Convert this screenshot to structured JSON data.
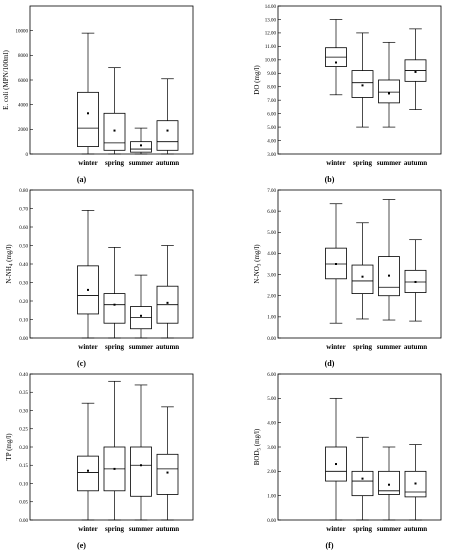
{
  "chart_data": [
    {
      "type": "box",
      "panel_label": "(a)",
      "ylabel": "E. coli (MPN/100ml)",
      "ylim": [
        0,
        12000
      ],
      "yticks": [
        0,
        2000,
        4000,
        6000,
        8000,
        10000
      ],
      "tick_decimals": 0,
      "categories": [
        "winter",
        "spring",
        "summer",
        "autumn"
      ],
      "boxes": [
        {
          "min": 0,
          "q1": 600,
          "median": 2100,
          "q3": 5000,
          "max": 9800,
          "mean": 3300
        },
        {
          "min": 0,
          "q1": 300,
          "median": 900,
          "q3": 3300,
          "max": 7000,
          "mean": 1900
        },
        {
          "min": 0,
          "q1": 150,
          "median": 400,
          "q3": 1000,
          "max": 2100,
          "mean": 700
        },
        {
          "min": 0,
          "q1": 300,
          "median": 1000,
          "q3": 2700,
          "max": 6100,
          "mean": 1900
        }
      ]
    },
    {
      "type": "box",
      "panel_label": "(b)",
      "ylabel": "DO (mg/l)",
      "ylim": [
        3.0,
        14.0
      ],
      "yticks": [
        3.0,
        4.0,
        5.0,
        6.0,
        7.0,
        8.0,
        9.0,
        10.0,
        11.0,
        12.0,
        13.0,
        14.0
      ],
      "tick_decimals": 2,
      "categories": [
        "winter",
        "spring",
        "summer",
        "autumn"
      ],
      "boxes": [
        {
          "min": 7.4,
          "q1": 9.5,
          "median": 10.2,
          "q3": 10.9,
          "max": 13.0,
          "mean": 9.8
        },
        {
          "min": 5.0,
          "q1": 7.2,
          "median": 8.3,
          "q3": 9.2,
          "max": 12.0,
          "mean": 8.1
        },
        {
          "min": 5.0,
          "q1": 6.8,
          "median": 7.6,
          "q3": 8.5,
          "max": 11.3,
          "mean": 7.5
        },
        {
          "min": 6.3,
          "q1": 8.4,
          "median": 9.2,
          "q3": 10.0,
          "max": 12.3,
          "mean": 9.1
        }
      ]
    },
    {
      "type": "box",
      "panel_label": "(c)",
      "ylabel": "N-NH4 (mg/l)",
      "ylim": [
        0,
        0.8
      ],
      "yticks": [
        0,
        0.1,
        0.2,
        0.3,
        0.4,
        0.5,
        0.6,
        0.7,
        0.8
      ],
      "tick_decimals": 2,
      "categories": [
        "winter",
        "spring",
        "summer",
        "autumn"
      ],
      "boxes": [
        {
          "min": 0,
          "q1": 0.13,
          "median": 0.23,
          "q3": 0.39,
          "max": 0.69,
          "mean": 0.26
        },
        {
          "min": 0,
          "q1": 0.08,
          "median": 0.18,
          "q3": 0.24,
          "max": 0.49,
          "mean": 0.18
        },
        {
          "min": 0,
          "q1": 0.05,
          "median": 0.11,
          "q3": 0.17,
          "max": 0.34,
          "mean": 0.12
        },
        {
          "min": 0,
          "q1": 0.08,
          "median": 0.18,
          "q3": 0.28,
          "max": 0.5,
          "mean": 0.19
        }
      ]
    },
    {
      "type": "box",
      "panel_label": "(d)",
      "ylabel": "N-NO3 (mg/l)",
      "ylim": [
        0,
        7.0
      ],
      "yticks": [
        0,
        1.0,
        2.0,
        3.0,
        4.0,
        5.0,
        6.0,
        7.0
      ],
      "tick_decimals": 2,
      "categories": [
        "winter",
        "spring",
        "summer",
        "autumn"
      ],
      "boxes": [
        {
          "min": 0.7,
          "q1": 2.8,
          "median": 3.5,
          "q3": 4.25,
          "max": 6.35,
          "mean": 3.5
        },
        {
          "min": 0.9,
          "q1": 2.1,
          "median": 2.7,
          "q3": 3.45,
          "max": 5.45,
          "mean": 2.9
        },
        {
          "min": 0.85,
          "q1": 2.0,
          "median": 2.4,
          "q3": 3.85,
          "max": 6.55,
          "mean": 2.95
        },
        {
          "min": 0.8,
          "q1": 2.15,
          "median": 2.65,
          "q3": 3.2,
          "max": 4.65,
          "mean": 2.65
        }
      ]
    },
    {
      "type": "box",
      "panel_label": "(e)",
      "ylabel": "TP (mg/l)",
      "ylim": [
        0,
        0.4
      ],
      "yticks": [
        0,
        0.05,
        0.1,
        0.15,
        0.2,
        0.25,
        0.3,
        0.35,
        0.4
      ],
      "tick_decimals": 2,
      "categories": [
        "winter",
        "spring",
        "summer",
        "autumn"
      ],
      "boxes": [
        {
          "min": 0,
          "q1": 0.08,
          "median": 0.13,
          "q3": 0.175,
          "max": 0.32,
          "mean": 0.135
        },
        {
          "min": 0,
          "q1": 0.08,
          "median": 0.14,
          "q3": 0.2,
          "max": 0.38,
          "mean": 0.14
        },
        {
          "min": 0,
          "q1": 0.065,
          "median": 0.15,
          "q3": 0.2,
          "max": 0.37,
          "mean": 0.15
        },
        {
          "min": 0,
          "q1": 0.07,
          "median": 0.14,
          "q3": 0.18,
          "max": 0.31,
          "mean": 0.13
        }
      ]
    },
    {
      "type": "box",
      "panel_label": "(f)",
      "ylabel": "BOD5 (mg/l)",
      "ylim": [
        0,
        6.0
      ],
      "yticks": [
        0,
        1.0,
        2.0,
        3.0,
        4.0,
        5.0,
        6.0
      ],
      "tick_decimals": 2,
      "categories": [
        "winter",
        "spring",
        "summer",
        "autumn"
      ],
      "boxes": [
        {
          "min": 0,
          "q1": 1.6,
          "median": 2.0,
          "q3": 3.0,
          "max": 5.0,
          "mean": 2.3
        },
        {
          "min": 0,
          "q1": 1.0,
          "median": 1.6,
          "q3": 2.0,
          "max": 3.4,
          "mean": 1.7
        },
        {
          "min": 0,
          "q1": 1.05,
          "median": 1.2,
          "q3": 2.0,
          "max": 3.0,
          "mean": 1.45
        },
        {
          "min": 0,
          "q1": 0.95,
          "median": 1.15,
          "q3": 2.0,
          "max": 3.1,
          "mean": 1.5
        }
      ]
    }
  ]
}
